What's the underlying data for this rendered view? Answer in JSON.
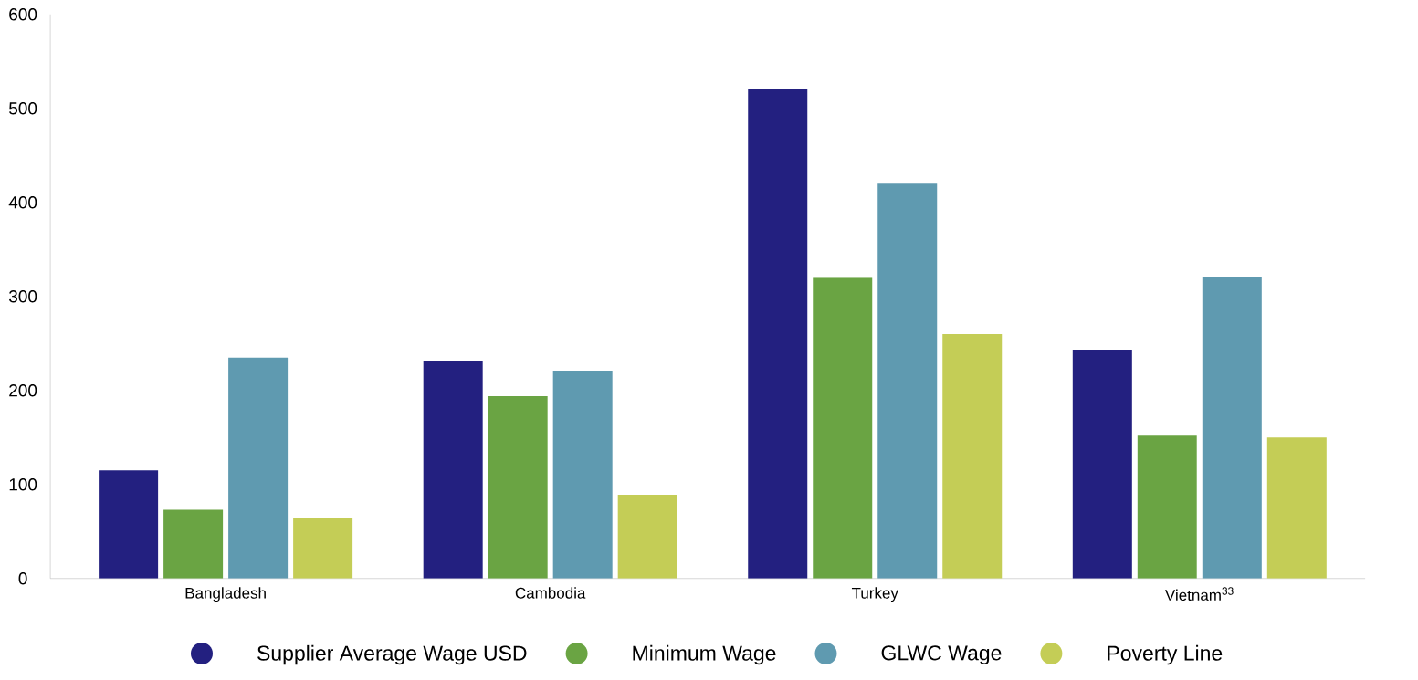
{
  "chart_data": {
    "type": "bar",
    "categories": [
      "Bangladesh",
      "Cambodia",
      "Turkey",
      "Vietnam$^{33}$"
    ],
    "series": [
      {
        "name": "Supplier Average Wage USD",
        "color": "#232080",
        "values": [
          115,
          231,
          521,
          243
        ]
      },
      {
        "name": "Minimum Wage",
        "color": "#6aa443",
        "values": [
          73,
          194,
          320,
          152
        ]
      },
      {
        "name": "GLWC Wage",
        "color": "#5f9ab0",
        "values": [
          235,
          221,
          420,
          321
        ]
      },
      {
        "name": "Poverty Line",
        "color": "#c4cd56",
        "values": [
          64,
          89,
          260,
          150
        ]
      }
    ],
    "ylim": [
      0,
      600
    ],
    "yticks": [
      0,
      100,
      200,
      300,
      400,
      500,
      600
    ],
    "grid": false,
    "legend": "bottom"
  }
}
